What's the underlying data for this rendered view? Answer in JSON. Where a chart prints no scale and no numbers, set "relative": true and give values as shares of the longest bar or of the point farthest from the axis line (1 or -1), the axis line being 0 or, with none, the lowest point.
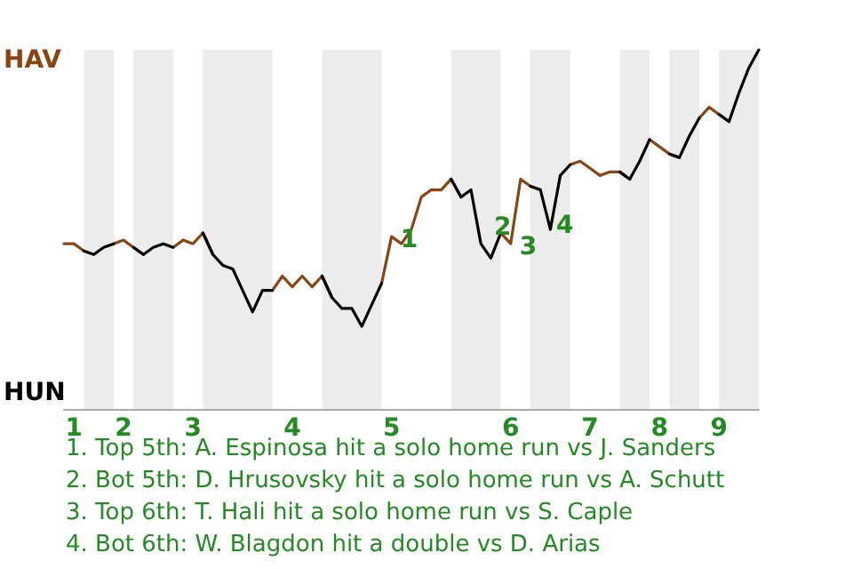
{
  "chart_data": {
    "type": "line",
    "relative": true,
    "categories": [
      null,
      "1",
      null,
      null,
      null,
      null,
      "2",
      null,
      null,
      null,
      null,
      null,
      null,
      "3",
      null,
      null,
      null,
      null,
      null,
      null,
      null,
      null,
      null,
      "4",
      null,
      null,
      null,
      null,
      null,
      null,
      null,
      null,
      null,
      "5",
      null,
      null,
      null,
      null,
      null,
      null,
      null,
      null,
      null,
      null,
      null,
      "6",
      null,
      null,
      null,
      null,
      null,
      null,
      null,
      "7",
      null,
      null,
      null,
      null,
      null,
      null,
      "8",
      null,
      null,
      null,
      null,
      null,
      "9",
      null,
      null,
      null,
      null
    ],
    "series": [
      {
        "color": "#8b4513",
        "values": [
          0.46,
          0.46,
          0.44,
          null,
          null,
          0.46,
          0.47,
          0.45,
          0.43,
          null,
          null,
          0.45,
          0.47,
          0.46,
          0.49,
          0.43,
          null,
          null,
          null,
          null,
          null,
          0.33,
          0.37,
          0.34,
          0.37,
          0.34,
          0.37,
          0.31,
          null,
          null,
          null,
          null,
          0.35,
          0.48,
          0.46,
          0.5,
          0.59,
          0.61,
          0.61,
          0.64,
          0.59,
          null,
          null,
          null,
          0.49,
          0.46,
          0.64,
          0.62,
          0.61,
          null,
          null,
          0.68,
          0.69,
          0.67,
          0.65,
          0.66,
          0.66,
          0.64,
          null,
          0.75,
          0.73,
          0.71,
          0.7,
          null,
          0.81,
          0.84,
          0.82,
          0.8,
          null,
          null,
          null
        ]
      },
      {
        "color": "#000000",
        "values": [
          null,
          null,
          0.44,
          0.43,
          0.45,
          0.46,
          null,
          0.45,
          0.43,
          0.45,
          0.46,
          0.45,
          null,
          null,
          0.49,
          0.43,
          0.4,
          0.39,
          0.33,
          0.27,
          0.33,
          0.33,
          null,
          null,
          null,
          null,
          0.37,
          0.31,
          0.28,
          0.28,
          0.23,
          0.29,
          0.35,
          null,
          null,
          null,
          null,
          null,
          null,
          0.64,
          0.59,
          0.61,
          0.46,
          0.42,
          0.49,
          null,
          null,
          0.62,
          0.61,
          0.5,
          0.65,
          0.68,
          null,
          null,
          null,
          null,
          0.66,
          0.64,
          0.69,
          0.75,
          null,
          0.71,
          0.7,
          0.76,
          0.81,
          null,
          0.82,
          0.8,
          0.88,
          0.95,
          1.0
        ]
      }
    ],
    "annotations": [
      "HAV",
      "HUN",
      {
        "text": "1",
        "x": "5",
        "y": 0.48
      },
      "2",
      {
        "text": "3",
        "x": "6",
        "y": 0.46
      },
      "4",
      "1. Top 5th: A. Espinosa hit a solo home run vs J. Sanders",
      "2. Bot 5th: D. Hrusovsky hit a solo home run vs A. Schutt",
      "3. Top 6th: T. Hali hit a solo home run vs S. Caple",
      "4. Bot 6th: W. Blagdon hit a double vs D. Arias"
    ]
  }
}
